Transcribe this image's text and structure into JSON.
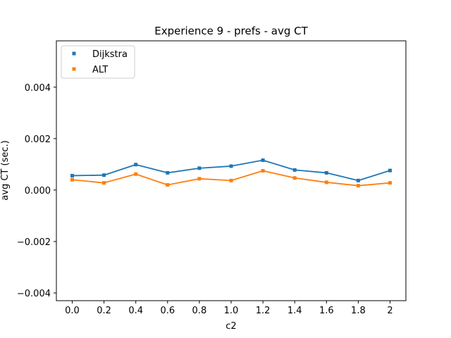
{
  "chart_data": {
    "type": "line",
    "title": "Experience 9 - prefs - avg CT",
    "xlabel": "c2",
    "ylabel": "avg CT (sec.)",
    "categories": [
      "0.0",
      "0.2",
      "0.4",
      "0.6",
      "0.8",
      "1.0",
      "1.2",
      "1.4",
      "1.6",
      "1.8",
      "2"
    ],
    "ylim": [
      -0.0043,
      0.0058
    ],
    "yticks": [
      -0.004,
      -0.002,
      0.0,
      0.002,
      0.004
    ],
    "ytick_labels": [
      "−0.004",
      "−0.002",
      "0.000",
      "0.002",
      "0.004"
    ],
    "grid": false,
    "legend_position": "upper-left",
    "series": [
      {
        "name": "Dijkstra",
        "color": "#1f77b4",
        "marker": "square",
        "values": [
          0.00056,
          0.00058,
          0.00099,
          0.00067,
          0.00085,
          0.00093,
          0.00116,
          0.00078,
          0.00067,
          0.00037,
          0.00076
        ]
      },
      {
        "name": "ALT",
        "color": "#ff7f0e",
        "marker": "square",
        "values": [
          0.0004,
          0.00028,
          0.00062,
          0.0002,
          0.00044,
          0.00037,
          0.00075,
          0.00047,
          0.0003,
          0.00017,
          0.00028
        ]
      }
    ]
  }
}
